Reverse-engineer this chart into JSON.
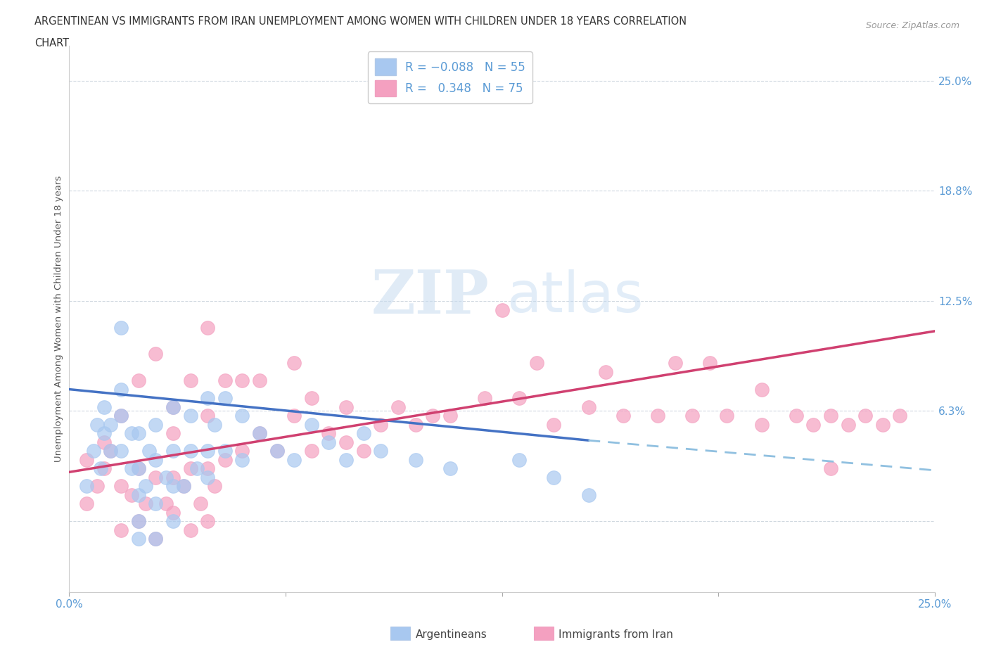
{
  "title_line1": "ARGENTINEAN VS IMMIGRANTS FROM IRAN UNEMPLOYMENT AMONG WOMEN WITH CHILDREN UNDER 18 YEARS CORRELATION",
  "title_line2": "CHART",
  "source_text": "Source: ZipAtlas.com",
  "ylabel": "Unemployment Among Women with Children Under 18 years",
  "color_blue": "#A8C8F0",
  "color_pink": "#F4A0C0",
  "color_blue_line": "#4472C4",
  "color_pink_line": "#D04070",
  "color_dashed": "#90C0E0",
  "color_axis_labels": "#5B9BD5",
  "color_grid": "#D0D8E0",
  "background_color": "#FFFFFF",
  "xlim": [
    0.0,
    0.25
  ],
  "ylim": [
    -0.04,
    0.27
  ],
  "yticks": [
    0.0,
    0.063,
    0.125,
    0.188,
    0.25
  ],
  "ytick_labels_right": [
    "",
    "6.3%",
    "12.5%",
    "18.8%",
    "25.0%"
  ],
  "xtick_positions": [
    0.0,
    0.0625,
    0.125,
    0.1875,
    0.25
  ],
  "xtick_labels": [
    "0.0%",
    "",
    "",
    "",
    "25.0%"
  ],
  "legend_label1": "R = -0.088   N = 55",
  "legend_label2": "R =  0.348   N = 75",
  "bottom_label1": "Argentineans",
  "bottom_label2": "Immigrants from Iran",
  "blue_scatter_x": [
    0.005,
    0.007,
    0.008,
    0.009,
    0.01,
    0.01,
    0.012,
    0.012,
    0.015,
    0.015,
    0.015,
    0.015,
    0.018,
    0.018,
    0.02,
    0.02,
    0.02,
    0.02,
    0.02,
    0.022,
    0.023,
    0.025,
    0.025,
    0.025,
    0.025,
    0.028,
    0.03,
    0.03,
    0.03,
    0.03,
    0.033,
    0.035,
    0.035,
    0.037,
    0.04,
    0.04,
    0.04,
    0.042,
    0.045,
    0.045,
    0.05,
    0.05,
    0.055,
    0.06,
    0.065,
    0.07,
    0.075,
    0.08,
    0.085,
    0.09,
    0.1,
    0.11,
    0.13,
    0.14,
    0.15
  ],
  "blue_scatter_y": [
    0.02,
    0.04,
    0.055,
    0.03,
    0.05,
    0.065,
    0.04,
    0.055,
    0.04,
    0.06,
    0.075,
    0.11,
    0.03,
    0.05,
    -0.01,
    0.0,
    0.015,
    0.03,
    0.05,
    0.02,
    0.04,
    -0.01,
    0.01,
    0.035,
    0.055,
    0.025,
    0.0,
    0.02,
    0.04,
    0.065,
    0.02,
    0.04,
    0.06,
    0.03,
    0.025,
    0.04,
    0.07,
    0.055,
    0.04,
    0.07,
    0.035,
    0.06,
    0.05,
    0.04,
    0.035,
    0.055,
    0.045,
    0.035,
    0.05,
    0.04,
    0.035,
    0.03,
    0.035,
    0.025,
    0.015
  ],
  "pink_scatter_x": [
    0.005,
    0.008,
    0.01,
    0.012,
    0.015,
    0.015,
    0.018,
    0.02,
    0.02,
    0.022,
    0.025,
    0.025,
    0.028,
    0.03,
    0.03,
    0.03,
    0.033,
    0.035,
    0.035,
    0.038,
    0.04,
    0.04,
    0.04,
    0.042,
    0.045,
    0.045,
    0.05,
    0.05,
    0.055,
    0.055,
    0.06,
    0.065,
    0.065,
    0.07,
    0.07,
    0.075,
    0.08,
    0.08,
    0.085,
    0.09,
    0.095,
    0.1,
    0.105,
    0.11,
    0.12,
    0.125,
    0.13,
    0.135,
    0.14,
    0.15,
    0.155,
    0.16,
    0.17,
    0.175,
    0.18,
    0.185,
    0.19,
    0.2,
    0.2,
    0.21,
    0.215,
    0.22,
    0.225,
    0.23,
    0.235,
    0.24,
    0.005,
    0.01,
    0.015,
    0.02,
    0.025,
    0.03,
    0.035,
    0.04,
    0.22
  ],
  "pink_scatter_y": [
    0.01,
    0.02,
    0.03,
    0.04,
    -0.005,
    0.02,
    0.015,
    0.0,
    0.03,
    0.01,
    -0.01,
    0.025,
    0.01,
    0.005,
    0.025,
    0.05,
    0.02,
    -0.005,
    0.03,
    0.01,
    0.0,
    0.03,
    0.06,
    0.02,
    0.035,
    0.08,
    0.04,
    0.08,
    0.05,
    0.08,
    0.04,
    0.06,
    0.09,
    0.04,
    0.07,
    0.05,
    0.045,
    0.065,
    0.04,
    0.055,
    0.065,
    0.055,
    0.06,
    0.06,
    0.07,
    0.12,
    0.07,
    0.09,
    0.055,
    0.065,
    0.085,
    0.06,
    0.06,
    0.09,
    0.06,
    0.09,
    0.06,
    0.055,
    0.075,
    0.06,
    0.055,
    0.06,
    0.055,
    0.06,
    0.055,
    0.06,
    0.035,
    0.045,
    0.06,
    0.08,
    0.095,
    0.065,
    0.08,
    0.11,
    0.03
  ],
  "blue_line_x0": 0.0,
  "blue_line_y0": 0.075,
  "blue_line_x1": 0.15,
  "blue_line_y1": 0.046,
  "blue_line_dash_x0": 0.15,
  "blue_line_dash_y0": 0.046,
  "blue_line_dash_x1": 0.25,
  "blue_line_dash_y1": 0.029,
  "pink_line_x0": 0.0,
  "pink_line_y0": 0.028,
  "pink_line_x1": 0.25,
  "pink_line_y1": 0.108
}
